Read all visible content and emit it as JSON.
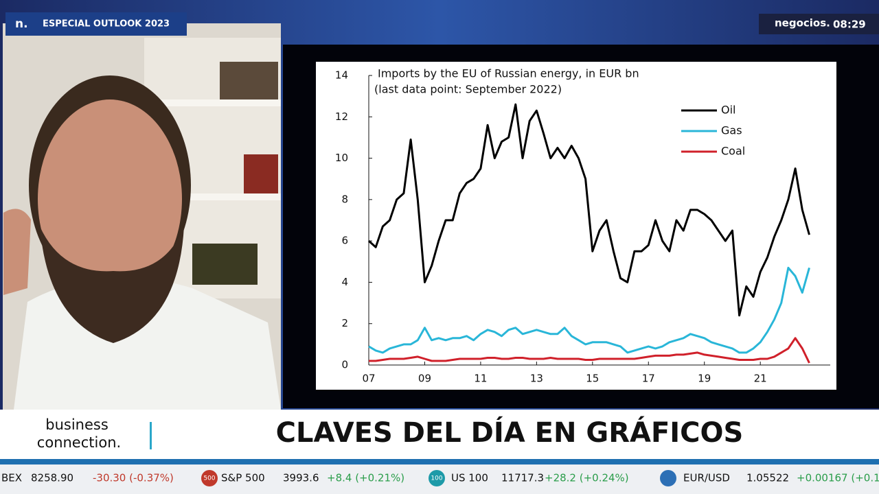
{
  "header": {
    "logo": "n.",
    "program": "ESPECIAL OUTLOOK 2023",
    "channel": "negocios.",
    "time": "08:29"
  },
  "chart_data": {
    "type": "line",
    "title": "Imports by the EU of Russian energy, in EUR bn",
    "subtitle": "(last data point: September 2022)",
    "x": [
      2007,
      2007.25,
      2007.5,
      2007.75,
      2008,
      2008.25,
      2008.5,
      2008.75,
      2009,
      2009.25,
      2009.5,
      2009.75,
      2010,
      2010.25,
      2010.5,
      2010.75,
      2011,
      2011.25,
      2011.5,
      2011.75,
      2012,
      2012.25,
      2012.5,
      2012.75,
      2013,
      2013.25,
      2013.5,
      2013.75,
      2014,
      2014.25,
      2014.5,
      2014.75,
      2015,
      2015.25,
      2015.5,
      2015.75,
      2016,
      2016.25,
      2016.5,
      2016.75,
      2017,
      2017.25,
      2017.5,
      2017.75,
      2018,
      2018.25,
      2018.5,
      2018.75,
      2019,
      2019.25,
      2019.5,
      2019.75,
      2020,
      2020.25,
      2020.5,
      2020.75,
      2021,
      2021.25,
      2021.5,
      2021.75,
      2022,
      2022.25,
      2022.5,
      2022.75
    ],
    "series": [
      {
        "name": "Oil",
        "color": "#000000",
        "values": [
          6.0,
          5.7,
          6.7,
          7.0,
          8.0,
          8.3,
          10.9,
          8.0,
          4.0,
          4.8,
          6.0,
          7.0,
          7.0,
          8.3,
          8.8,
          9.0,
          9.5,
          11.6,
          10.0,
          10.8,
          11.0,
          12.6,
          10.0,
          11.8,
          12.3,
          11.2,
          10.0,
          10.5,
          10.0,
          10.6,
          10.0,
          9.0,
          5.5,
          6.5,
          7.0,
          5.5,
          4.2,
          4.0,
          5.5,
          5.5,
          5.8,
          7.0,
          6.0,
          5.5,
          7.0,
          6.5,
          7.5,
          7.5,
          7.3,
          7.0,
          6.5,
          6.0,
          6.5,
          2.4,
          3.8,
          3.3,
          4.5,
          5.2,
          6.2,
          7.0,
          8.0,
          9.5,
          7.5,
          6.3
        ]
      },
      {
        "name": "Gas",
        "color": "#29b6d8",
        "values": [
          0.9,
          0.7,
          0.6,
          0.8,
          0.9,
          1.0,
          1.0,
          1.2,
          1.8,
          1.2,
          1.3,
          1.2,
          1.3,
          1.3,
          1.4,
          1.2,
          1.5,
          1.7,
          1.6,
          1.4,
          1.7,
          1.8,
          1.5,
          1.6,
          1.7,
          1.6,
          1.5,
          1.5,
          1.8,
          1.4,
          1.2,
          1.0,
          1.1,
          1.1,
          1.1,
          1.0,
          0.9,
          0.6,
          0.7,
          0.8,
          0.9,
          0.8,
          0.9,
          1.1,
          1.2,
          1.3,
          1.5,
          1.4,
          1.3,
          1.1,
          1.0,
          0.9,
          0.8,
          0.6,
          0.6,
          0.8,
          1.1,
          1.6,
          2.2,
          3.0,
          4.7,
          4.3,
          3.5,
          4.7
        ]
      },
      {
        "name": "Coal",
        "color": "#d0202a",
        "values": [
          0.2,
          0.2,
          0.25,
          0.3,
          0.3,
          0.3,
          0.35,
          0.4,
          0.3,
          0.2,
          0.2,
          0.2,
          0.25,
          0.3,
          0.3,
          0.3,
          0.3,
          0.35,
          0.35,
          0.3,
          0.3,
          0.35,
          0.35,
          0.3,
          0.3,
          0.3,
          0.35,
          0.3,
          0.3,
          0.3,
          0.3,
          0.25,
          0.25,
          0.3,
          0.3,
          0.3,
          0.3,
          0.3,
          0.3,
          0.35,
          0.4,
          0.45,
          0.45,
          0.45,
          0.5,
          0.5,
          0.55,
          0.6,
          0.5,
          0.45,
          0.4,
          0.35,
          0.3,
          0.25,
          0.25,
          0.25,
          0.3,
          0.3,
          0.4,
          0.6,
          0.8,
          1.3,
          0.8,
          0.1
        ]
      }
    ],
    "xlim": [
      2007,
      2023.5
    ],
    "xticks": [
      {
        "value": 2007,
        "label": "07"
      },
      {
        "value": 2009,
        "label": "09"
      },
      {
        "value": 2011,
        "label": "11"
      },
      {
        "value": 2013,
        "label": "13"
      },
      {
        "value": 2015,
        "label": "15"
      },
      {
        "value": 2017,
        "label": "17"
      },
      {
        "value": 2019,
        "label": "19"
      },
      {
        "value": 2021,
        "label": "21"
      }
    ],
    "ylim": [
      0,
      14
    ],
    "yticks": [
      0,
      2,
      4,
      6,
      8,
      10,
      12,
      14
    ],
    "legend": "upper right"
  },
  "lower_third": {
    "brand_line1": "business",
    "brand_line2": "connection.",
    "headline": "CLAVES DEL DÍA EN GRÁFICOS"
  },
  "ticker": [
    {
      "name": "BEX",
      "value": "8258.90",
      "change": "-30.30 (-0.37%)"
    },
    {
      "icon": "500",
      "name": "S&P 500",
      "value": "3993.6",
      "change": "+8.4 (+0.21%)"
    },
    {
      "icon": "100",
      "name": "US 100",
      "value": "11717.3",
      "change": "+28.2 (+0.24%)"
    },
    {
      "name": "EUR/USD",
      "value": "1.05522",
      "change": "+0.00167 (+0.1"
    }
  ]
}
